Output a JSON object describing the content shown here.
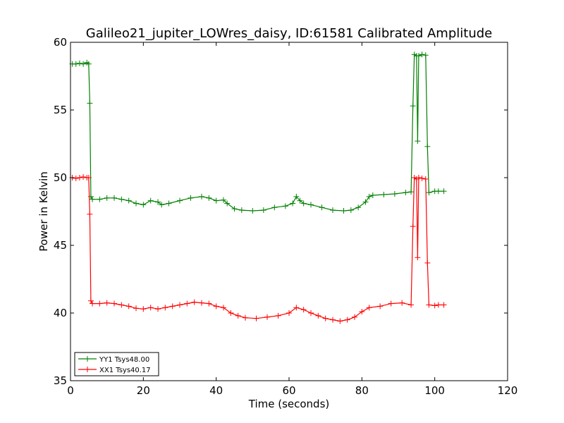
{
  "chart_data": {
    "type": "line",
    "title": "Galileo21_jupiter_LOWres_daisy, ID:61581 Calibrated Amplitude",
    "xlabel": "Time (seconds)",
    "ylabel": "Power in Kelvin",
    "xlim": [
      0,
      120
    ],
    "ylim": [
      35,
      60
    ],
    "xticks": [
      0,
      20,
      40,
      60,
      80,
      100,
      120
    ],
    "yticks": [
      35,
      40,
      45,
      50,
      55,
      60
    ],
    "grid": false,
    "legend_position": "bottom-left",
    "series": [
      {
        "name": "YY1 Tsys48.00",
        "color": "#008000",
        "marker": "+",
        "points": [
          [
            0.5,
            58.4
          ],
          [
            1.5,
            58.4
          ],
          [
            2.5,
            58.45
          ],
          [
            3.5,
            58.4
          ],
          [
            4.5,
            58.5
          ],
          [
            5.0,
            58.4
          ],
          [
            5.3,
            55.5
          ],
          [
            5.6,
            48.6
          ],
          [
            6.0,
            48.4
          ],
          [
            8,
            48.4
          ],
          [
            10,
            48.5
          ],
          [
            12,
            48.5
          ],
          [
            14,
            48.4
          ],
          [
            16,
            48.3
          ],
          [
            18,
            48.1
          ],
          [
            20,
            48.0
          ],
          [
            22,
            48.3
          ],
          [
            24,
            48.2
          ],
          [
            25,
            48.0
          ],
          [
            27,
            48.1
          ],
          [
            30,
            48.3
          ],
          [
            33,
            48.5
          ],
          [
            36,
            48.6
          ],
          [
            38,
            48.5
          ],
          [
            40,
            48.3
          ],
          [
            42,
            48.35
          ],
          [
            43,
            48.1
          ],
          [
            45,
            47.7
          ],
          [
            47,
            47.6
          ],
          [
            50,
            47.55
          ],
          [
            53,
            47.6
          ],
          [
            56,
            47.8
          ],
          [
            59,
            47.9
          ],
          [
            61,
            48.1
          ],
          [
            62,
            48.6
          ],
          [
            63,
            48.3
          ],
          [
            64,
            48.1
          ],
          [
            66,
            48.0
          ],
          [
            69,
            47.8
          ],
          [
            72,
            47.6
          ],
          [
            75,
            47.55
          ],
          [
            77,
            47.6
          ],
          [
            79,
            47.8
          ],
          [
            81,
            48.2
          ],
          [
            82,
            48.6
          ],
          [
            83,
            48.7
          ],
          [
            86,
            48.75
          ],
          [
            89,
            48.8
          ],
          [
            92,
            48.9
          ],
          [
            93.5,
            48.95
          ],
          [
            94.0,
            55.3
          ],
          [
            94.4,
            59.1
          ],
          [
            95.0,
            59.0
          ],
          [
            95.3,
            52.7
          ],
          [
            95.6,
            59.0
          ],
          [
            96.5,
            59.1
          ],
          [
            97.5,
            59.05
          ],
          [
            98.0,
            52.3
          ],
          [
            98.4,
            48.9
          ],
          [
            100,
            49.0
          ],
          [
            101,
            49.0
          ],
          [
            102.5,
            49.0
          ]
        ]
      },
      {
        "name": "XX1 Tsys40.17",
        "color": "#ff0000",
        "marker": "+",
        "points": [
          [
            0.5,
            50.0
          ],
          [
            1.5,
            49.95
          ],
          [
            2.5,
            50.0
          ],
          [
            3.5,
            50.05
          ],
          [
            4.5,
            50.0
          ],
          [
            5.0,
            50.0
          ],
          [
            5.3,
            47.3
          ],
          [
            5.6,
            40.9
          ],
          [
            6.0,
            40.7
          ],
          [
            8,
            40.7
          ],
          [
            10,
            40.75
          ],
          [
            12,
            40.7
          ],
          [
            14,
            40.6
          ],
          [
            16,
            40.5
          ],
          [
            18,
            40.35
          ],
          [
            20,
            40.3
          ],
          [
            22,
            40.4
          ],
          [
            24,
            40.3
          ],
          [
            26,
            40.4
          ],
          [
            28,
            40.5
          ],
          [
            30,
            40.6
          ],
          [
            32,
            40.7
          ],
          [
            34,
            40.8
          ],
          [
            36,
            40.75
          ],
          [
            38,
            40.7
          ],
          [
            40,
            40.5
          ],
          [
            42,
            40.4
          ],
          [
            44,
            40.0
          ],
          [
            46,
            39.8
          ],
          [
            48,
            39.65
          ],
          [
            51,
            39.6
          ],
          [
            54,
            39.7
          ],
          [
            57,
            39.8
          ],
          [
            60,
            40.0
          ],
          [
            62,
            40.4
          ],
          [
            64,
            40.25
          ],
          [
            66,
            40.0
          ],
          [
            68,
            39.8
          ],
          [
            70,
            39.6
          ],
          [
            72,
            39.5
          ],
          [
            74,
            39.4
          ],
          [
            76,
            39.5
          ],
          [
            78,
            39.7
          ],
          [
            80,
            40.1
          ],
          [
            82,
            40.4
          ],
          [
            85,
            40.5
          ],
          [
            88,
            40.7
          ],
          [
            91,
            40.75
          ],
          [
            93.5,
            40.6
          ],
          [
            94.0,
            46.4
          ],
          [
            94.4,
            50.0
          ],
          [
            95.0,
            49.9
          ],
          [
            95.3,
            44.1
          ],
          [
            95.6,
            50.0
          ],
          [
            96.5,
            49.95
          ],
          [
            97.5,
            49.9
          ],
          [
            98.0,
            43.7
          ],
          [
            98.4,
            40.6
          ],
          [
            100,
            40.55
          ],
          [
            101,
            40.6
          ],
          [
            102.5,
            40.6
          ]
        ]
      }
    ]
  }
}
